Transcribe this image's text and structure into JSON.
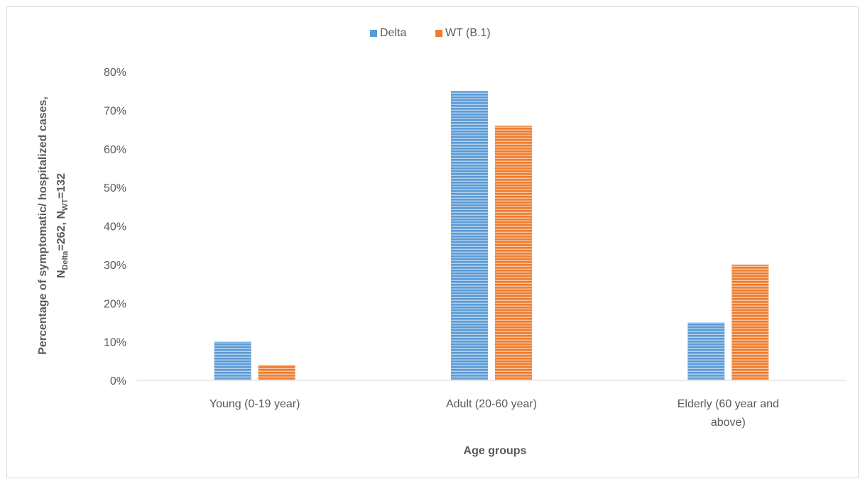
{
  "chart_data": {
    "type": "bar",
    "title": "",
    "xlabel": "Age groups",
    "ylabel": {
      "line1": "Percentage of symptomatic/ hospitalized cases,",
      "line2_prefix": "N",
      "line2_sub1": "Delta",
      "line2_mid": "=262, N",
      "line2_sub2": "WT",
      "line2_suffix": "=132"
    },
    "categories": [
      [
        "Young (0-19 year)"
      ],
      [
        "Adult (20-60 year)"
      ],
      [
        "Elderly (60 year and",
        "above)"
      ]
    ],
    "series": [
      {
        "name": "Delta",
        "values": [
          10,
          75,
          15
        ],
        "color": "#5b9bd5"
      },
      {
        "name": "WT (B.1)",
        "values": [
          4,
          66,
          30
        ],
        "color": "#ed7d31"
      }
    ],
    "ylim": [
      0,
      80
    ],
    "yticks": [
      0,
      10,
      20,
      30,
      40,
      50,
      60,
      70,
      80
    ],
    "ytick_format": "percent",
    "grid": false,
    "legend_position": "top-center",
    "bar_pattern": "horizontal-stripes"
  }
}
